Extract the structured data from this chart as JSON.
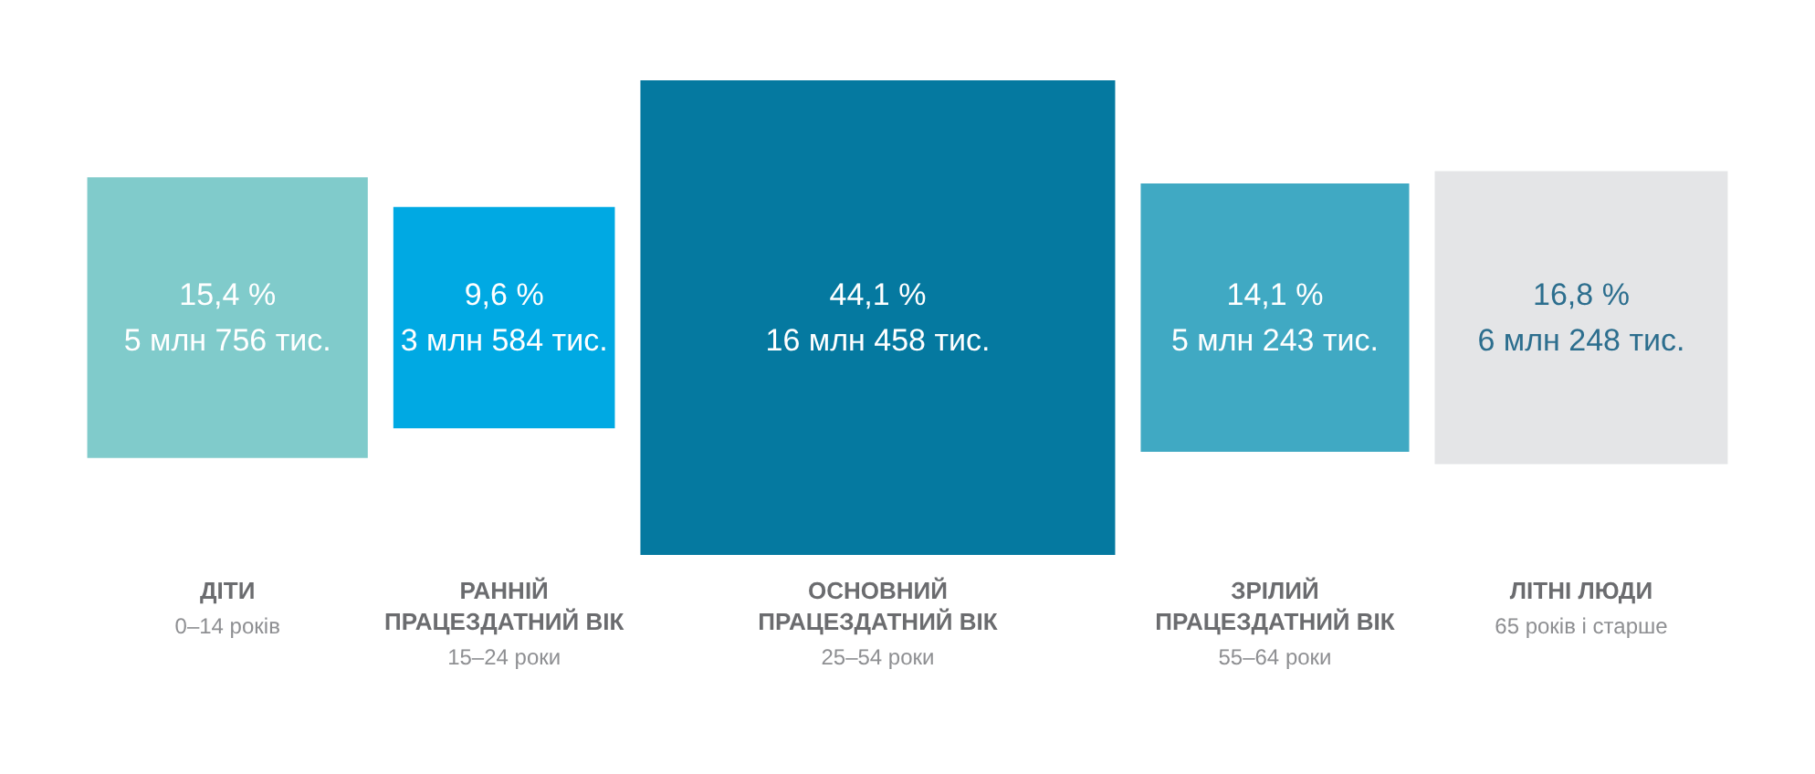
{
  "chart_data": {
    "type": "other",
    "categories": [
      "ДІТИ",
      "РАННІЙ ПРАЦЕЗДАТНИЙ ВІК",
      "ОСНОВНИЙ ПРАЦЕЗДАТНИЙ ВІК",
      "ЗРІЛИЙ ПРАЦЕЗДАТНИЙ ВІК",
      "ЛІТНІ ЛЮДИ"
    ],
    "series": [
      {
        "values": [
          15.4,
          9.6,
          44.1,
          14.1,
          16.8
        ],
        "colors": [
          "#80cbcb",
          "#00a9e3",
          "#0579a0",
          "#40a9c3",
          "#e4e5e7"
        ],
        "value_labels": [
          "15,4 %\n5 млн 756 тис.",
          "9,6 %\n3 млн 584 тис.",
          "44,1 %\n16 млн 458 тис.",
          "14,1 %\n5 млн 243 тис.",
          "16,8 %\n6 млн 248 тис."
        ]
      }
    ],
    "annotations": [
      {
        "text": "0–14 років",
        "x": "ДІТИ"
      },
      {
        "text": "15–24 роки",
        "x": "РАННІЙ ПРАЦЕЗДАТНИЙ ВІК"
      },
      {
        "text": "25–54 роки",
        "x": "ОСНОВНИЙ ПРАЦЕЗДАТНИЙ ВІК"
      },
      {
        "text": "55–64 роки",
        "x": "ЗРІЛИЙ ПРАЦЕЗДАТНИЙ ВІК"
      },
      {
        "text": "65 років і старше",
        "x": "ЛІТНІ ЛЮДИ"
      }
    ]
  }
}
